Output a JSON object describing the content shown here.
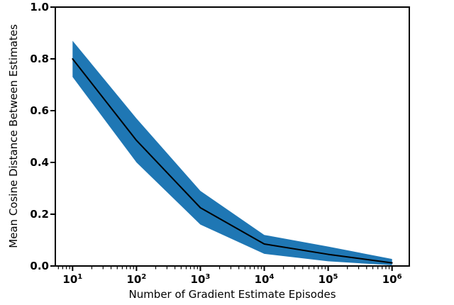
{
  "figure": {
    "background": "#ffffff"
  },
  "chart_data": {
    "type": "line",
    "subtype": "line_with_confidence_band",
    "title": "",
    "xlabel": "Number of Gradient Estimate Episodes",
    "ylabel": "Mean Cosine Distance Between Estimates",
    "x_scale": "log",
    "xlim": [
      10,
      1000000
    ],
    "ylim": [
      0.0,
      1.0
    ],
    "grid": false,
    "legend": "none",
    "x": [
      10,
      100,
      1000,
      10000,
      100000,
      1000000
    ],
    "series": [
      {
        "name": "mean",
        "values": [
          0.8,
          0.485,
          0.225,
          0.085,
          0.045,
          0.012
        ]
      },
      {
        "name": "band_upper",
        "values": [
          0.87,
          0.57,
          0.29,
          0.12,
          0.075,
          0.027
        ]
      },
      {
        "name": "band_lower",
        "values": [
          0.73,
          0.4,
          0.16,
          0.047,
          0.018,
          0.003
        ]
      }
    ],
    "yticks": [
      0.0,
      0.2,
      0.4,
      0.6,
      0.8,
      1.0
    ],
    "yticklabels": [
      "0.0",
      "0.2",
      "0.4",
      "0.6",
      "0.8",
      "1.0"
    ],
    "xticks": [
      {
        "base": "10",
        "exp": 1
      },
      {
        "base": "10",
        "exp": 2
      },
      {
        "base": "10",
        "exp": 3
      },
      {
        "base": "10",
        "exp": 4
      },
      {
        "base": "10",
        "exp": 5
      },
      {
        "base": "10",
        "exp": 6
      }
    ],
    "colors": {
      "band": "#1f77b4",
      "line": "#000000",
      "axis": "#000000"
    }
  }
}
